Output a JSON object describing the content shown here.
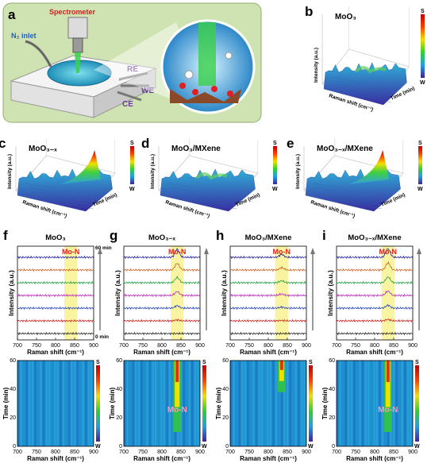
{
  "panels": {
    "a": {
      "letter": "a",
      "spectrometer": "Spectrometer",
      "n2_inlet": "N₂ inlet",
      "re": "RE",
      "we": "WE",
      "ce": "CE"
    },
    "b": {
      "letter": "b",
      "title": "MoO₃"
    },
    "c": {
      "letter": "c",
      "title": "MoO₃₋ₓ"
    },
    "d": {
      "letter": "d",
      "title": "MoO₃/MXene"
    },
    "e": {
      "letter": "e",
      "title": "MoO₃₋ₓ/MXene"
    },
    "f": {
      "letter": "f",
      "title": "MoO₃"
    },
    "g": {
      "letter": "g",
      "title": "MoO₃₋ₓ"
    },
    "h": {
      "letter": "h",
      "title": "MoO₃/MXene"
    },
    "i": {
      "letter": "i",
      "title": "MoO₃₋ₓ/MXene"
    }
  },
  "surface_axes": {
    "z": "Intensity (a.u.)",
    "x": "Raman shift (cm⁻¹)",
    "y": "Time (min)",
    "cbar_top": "S",
    "cbar_bottom": "W"
  },
  "line_axes": {
    "y": "Intensity (a.u.)",
    "x": "Raman shift (cm⁻¹)",
    "ticks": [
      "700",
      "750",
      "800",
      "850",
      "900"
    ],
    "time_top": "60 min",
    "time_bottom": "0 min",
    "peak": "Mo-N"
  },
  "map_axes": {
    "y": "Time (min)",
    "x": "Raman shift (cm⁻¹)",
    "x_ticks": [
      "700",
      "750",
      "800",
      "850",
      "900"
    ],
    "y_ticks": [
      "0",
      "20",
      "40",
      "60"
    ],
    "cbar_top": "S",
    "cbar_bottom": "W",
    "peak": "Mo-N"
  },
  "colors": {
    "panel_a_bg": "#cfe3b2",
    "surface_low": "#3a3aa8",
    "surface_high": "#e02020",
    "highlight": "#f5ef7a"
  },
  "chart_data": [
    {
      "type": "line",
      "panel": "f",
      "title": "MoO₃",
      "xlabel": "Raman shift (cm⁻¹)",
      "ylabel": "Intensity (a.u.)",
      "xlim": [
        700,
        900
      ],
      "series_count": 7,
      "peak_center": 840,
      "peak_heights": [
        0,
        0,
        0,
        0,
        0,
        0,
        0
      ]
    },
    {
      "type": "line",
      "panel": "g",
      "title": "MoO₃₋ₓ",
      "xlabel": "Raman shift (cm⁻¹)",
      "ylabel": "Intensity (a.u.)",
      "xlim": [
        700,
        900
      ],
      "series_count": 7,
      "peak_center": 840,
      "peak_heights": [
        0,
        0.1,
        0.25,
        0.4,
        0.55,
        0.7,
        0.85
      ]
    },
    {
      "type": "line",
      "panel": "h",
      "title": "MoO₃/MXene",
      "xlabel": "Raman shift (cm⁻¹)",
      "ylabel": "Intensity (a.u.)",
      "xlim": [
        700,
        900
      ],
      "series_count": 7,
      "peak_center": 835,
      "peak_heights": [
        0,
        0.05,
        0.1,
        0.15,
        0.2,
        0.25,
        0.3
      ]
    },
    {
      "type": "line",
      "panel": "i",
      "title": "MoO₃₋ₓ/MXene",
      "xlabel": "Raman shift (cm⁻¹)",
      "ylabel": "Intensity (a.u.)",
      "xlim": [
        700,
        900
      ],
      "series_count": 7,
      "peak_center": 835,
      "peak_heights": [
        0,
        0.15,
        0.3,
        0.45,
        0.6,
        0.75,
        0.9
      ]
    },
    {
      "type": "heatmap",
      "panel": "f",
      "xlabel": "Raman shift (cm⁻¹)",
      "ylabel": "Time (min)",
      "xlim": [
        700,
        900
      ],
      "ylim": [
        0,
        60
      ],
      "peak_center": null,
      "peak_time_start": null
    },
    {
      "type": "heatmap",
      "panel": "g",
      "xlabel": "Raman shift (cm⁻¹)",
      "ylabel": "Time (min)",
      "xlim": [
        700,
        900
      ],
      "ylim": [
        0,
        60
      ],
      "peak_center": 840,
      "peak_time_start": 10
    },
    {
      "type": "heatmap",
      "panel": "h",
      "xlabel": "Raman shift (cm⁻¹)",
      "ylabel": "Time (min)",
      "xlim": [
        700,
        900
      ],
      "ylim": [
        0,
        60
      ],
      "peak_center": 835,
      "peak_time_start": 38
    },
    {
      "type": "heatmap",
      "panel": "i",
      "xlabel": "Raman shift (cm⁻¹)",
      "ylabel": "Time (min)",
      "xlim": [
        700,
        900
      ],
      "ylim": [
        0,
        60
      ],
      "peak_center": 835,
      "peak_time_start": 10
    }
  ]
}
